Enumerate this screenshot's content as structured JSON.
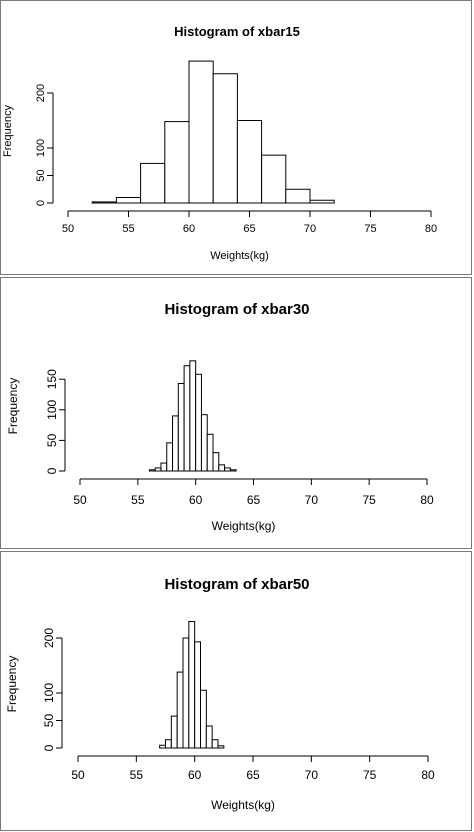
{
  "chart_data": [
    {
      "type": "bar",
      "title": "Histogram of xbar15",
      "xlabel": "Weights(kg)",
      "ylabel": "Frequency",
      "xlim": [
        50,
        80
      ],
      "ylim": [
        0,
        250
      ],
      "xticks": [
        "50",
        "55",
        "60",
        "65",
        "70",
        "75",
        "80"
      ],
      "yticks": [
        "0",
        "50",
        "100",
        "200"
      ],
      "bins": [
        {
          "from": 52,
          "to": 54,
          "count": 2
        },
        {
          "from": 54,
          "to": 56,
          "count": 10
        },
        {
          "from": 56,
          "to": 58,
          "count": 72
        },
        {
          "from": 58,
          "to": 60,
          "count": 148
        },
        {
          "from": 60,
          "to": 62,
          "count": 258
        },
        {
          "from": 62,
          "to": 64,
          "count": 235
        },
        {
          "from": 64,
          "to": 66,
          "count": 150
        },
        {
          "from": 66,
          "to": 68,
          "count": 87
        },
        {
          "from": 68,
          "to": 70,
          "count": 25
        },
        {
          "from": 70,
          "to": 72,
          "count": 5
        }
      ],
      "grid": false
    },
    {
      "type": "bar",
      "title": "Histogram of xbar30",
      "xlabel": "Weights(kg)",
      "ylabel": "Frequency",
      "xlim": [
        50,
        80
      ],
      "ylim": [
        0,
        180
      ],
      "xticks": [
        "50",
        "55",
        "60",
        "65",
        "70",
        "75",
        "80"
      ],
      "yticks": [
        "0",
        "50",
        "100",
        "150"
      ],
      "bins": [
        {
          "from": 56.0,
          "to": 56.5,
          "count": 2
        },
        {
          "from": 56.5,
          "to": 57.0,
          "count": 5
        },
        {
          "from": 57.0,
          "to": 57.5,
          "count": 13
        },
        {
          "from": 57.5,
          "to": 58.0,
          "count": 46
        },
        {
          "from": 58.0,
          "to": 58.5,
          "count": 90
        },
        {
          "from": 58.5,
          "to": 59.0,
          "count": 143
        },
        {
          "from": 59.0,
          "to": 59.5,
          "count": 172
        },
        {
          "from": 59.5,
          "to": 60.0,
          "count": 180
        },
        {
          "from": 60.0,
          "to": 60.5,
          "count": 158
        },
        {
          "from": 60.5,
          "to": 61.0,
          "count": 92
        },
        {
          "from": 61.0,
          "to": 61.5,
          "count": 60
        },
        {
          "from": 61.5,
          "to": 62.0,
          "count": 30
        },
        {
          "from": 62.0,
          "to": 62.5,
          "count": 10
        },
        {
          "from": 62.5,
          "to": 63.0,
          "count": 5
        },
        {
          "from": 63.0,
          "to": 63.5,
          "count": 2
        }
      ],
      "grid": false
    },
    {
      "type": "bar",
      "title": "Histogram of xbar50",
      "xlabel": "Weights(kg)",
      "ylabel": "Frequency",
      "xlim": [
        50,
        80
      ],
      "ylim": [
        0,
        230
      ],
      "xticks": [
        "50",
        "55",
        "60",
        "65",
        "70",
        "75",
        "80"
      ],
      "yticks": [
        "0",
        "50",
        "100",
        "200"
      ],
      "bins": [
        {
          "from": 57.0,
          "to": 57.5,
          "count": 5
        },
        {
          "from": 57.5,
          "to": 58.0,
          "count": 15
        },
        {
          "from": 58.0,
          "to": 58.5,
          "count": 58
        },
        {
          "from": 58.5,
          "to": 59.0,
          "count": 138
        },
        {
          "from": 59.0,
          "to": 59.5,
          "count": 200
        },
        {
          "from": 59.5,
          "to": 60.0,
          "count": 230
        },
        {
          "from": 60.0,
          "to": 60.5,
          "count": 193
        },
        {
          "from": 60.5,
          "to": 61.0,
          "count": 105
        },
        {
          "from": 61.0,
          "to": 61.5,
          "count": 40
        },
        {
          "from": 61.5,
          "to": 62.0,
          "count": 15
        },
        {
          "from": 62.0,
          "to": 62.5,
          "count": 4
        }
      ],
      "grid": false
    }
  ]
}
